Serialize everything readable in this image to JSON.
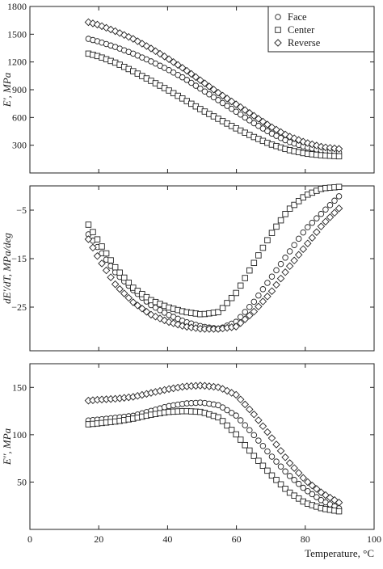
{
  "chart_data": {
    "type": "scatter",
    "xlabel": "Temperature, °C",
    "xlim": [
      0,
      100
    ],
    "xticks": [
      0,
      20,
      40,
      60,
      80,
      100
    ],
    "legend": {
      "placement": "top-right",
      "entries": [
        {
          "name": "Face",
          "marker": "circle"
        },
        {
          "name": "Center",
          "marker": "square"
        },
        {
          "name": "Reverse",
          "marker": "diamond"
        }
      ]
    },
    "panels": [
      {
        "id": "storage-modulus",
        "ylabel": "E', MPa",
        "ylim": [
          0,
          1800
        ],
        "yticks": [
          300,
          600,
          900,
          1200,
          1500,
          1800
        ],
        "series": [
          {
            "name": "Face",
            "marker": "circle",
            "x": [
              17,
              20,
              25,
              30,
              35,
              40,
              45,
              50,
              55,
              60,
              65,
              70,
              75,
              80,
              85,
              90
            ],
            "y": [
              1450,
              1420,
              1360,
              1290,
              1210,
              1120,
              1020,
              900,
              780,
              660,
              540,
              430,
              340,
              280,
              240,
              220
            ]
          },
          {
            "name": "Center",
            "marker": "square",
            "x": [
              17,
              20,
              25,
              30,
              35,
              40,
              45,
              50,
              55,
              60,
              65,
              70,
              75,
              80,
              85,
              90
            ],
            "y": [
              1290,
              1260,
              1190,
              1100,
              1000,
              900,
              790,
              680,
              580,
              480,
              390,
              310,
              250,
              210,
              190,
              180
            ]
          },
          {
            "name": "Reverse",
            "marker": "diamond",
            "x": [
              17,
              20,
              25,
              30,
              35,
              40,
              45,
              50,
              55,
              60,
              65,
              70,
              75,
              80,
              85,
              90
            ],
            "y": [
              1630,
              1600,
              1530,
              1450,
              1350,
              1240,
              1120,
              990,
              860,
              740,
              620,
              500,
              400,
              330,
              280,
              260
            ]
          }
        ]
      },
      {
        "id": "modulus-derivative",
        "ylabel": "dE'/dT, MPa/deg",
        "ylim": [
          -34,
          0
        ],
        "yticks": [
          -25,
          -15,
          -5
        ],
        "series": [
          {
            "name": "Face",
            "marker": "circle",
            "x": [
              17,
              20,
              25,
              30,
              35,
              40,
              45,
              50,
              55,
              60,
              65,
              70,
              75,
              80,
              85,
              90
            ],
            "y": [
              -10,
              -13,
              -18,
              -21.5,
              -24.5,
              -26.5,
              -28,
              -29,
              -29.5,
              -28,
              -24,
              -19,
              -14,
              -9,
              -5.5,
              -2
            ]
          },
          {
            "name": "Center",
            "marker": "square",
            "x": [
              17,
              20,
              25,
              30,
              35,
              40,
              45,
              50,
              55,
              60,
              65,
              70,
              75,
              80,
              85,
              90
            ],
            "y": [
              -8,
              -11.5,
              -17,
              -21,
              -23.5,
              -25,
              -26,
              -26.5,
              -26,
              -22,
              -16,
              -10,
              -5,
              -2,
              -0.5,
              -0.2
            ]
          },
          {
            "name": "Reverse",
            "marker": "diamond",
            "x": [
              17,
              20,
              25,
              30,
              35,
              40,
              45,
              50,
              55,
              60,
              65,
              70,
              75,
              80,
              85,
              90
            ],
            "y": [
              -11,
              -15,
              -20.5,
              -24,
              -26.5,
              -28,
              -29,
              -29.5,
              -29.5,
              -29,
              -26,
              -22,
              -17,
              -12.5,
              -8,
              -4.5
            ]
          }
        ]
      },
      {
        "id": "loss-modulus",
        "ylabel": "E'', MPa",
        "ylim": [
          0,
          175
        ],
        "yticks": [
          50,
          100,
          150
        ],
        "series": [
          {
            "name": "Face",
            "marker": "circle",
            "x": [
              17,
              20,
              25,
              30,
              35,
              40,
              45,
              50,
              55,
              60,
              65,
              70,
              75,
              80,
              85,
              90
            ],
            "y": [
              115,
              116,
              118,
              120,
              125,
              130,
              133,
              134,
              131,
              120,
              100,
              78,
              58,
              42,
              30,
              22
            ]
          },
          {
            "name": "Center",
            "marker": "square",
            "x": [
              17,
              20,
              25,
              30,
              35,
              40,
              45,
              50,
              55,
              60,
              65,
              70,
              75,
              80,
              85,
              90
            ],
            "y": [
              111,
              112,
              114,
              117,
              121,
              124,
              125,
              124,
              118,
              100,
              78,
              58,
              40,
              28,
              22,
              19
            ]
          },
          {
            "name": "Reverse",
            "marker": "diamond",
            "x": [
              17,
              20,
              25,
              30,
              35,
              40,
              45,
              50,
              55,
              60,
              65,
              70,
              75,
              80,
              85,
              90
            ],
            "y": [
              136,
              137,
              138,
              140,
              144,
              148,
              151,
              152,
              150,
              142,
              122,
              98,
              72,
              52,
              38,
              28
            ]
          }
        ]
      }
    ]
  }
}
